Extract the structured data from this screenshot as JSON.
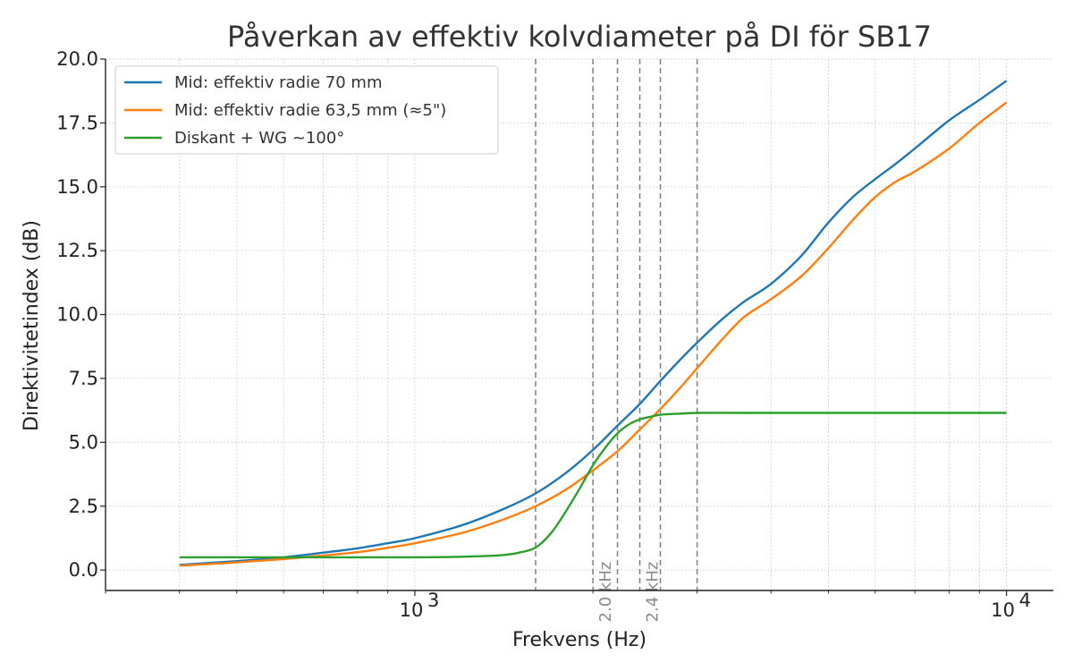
{
  "chart_data": {
    "type": "line",
    "title": "Påverkan av effektiv kolvdiameter på DI för SB17",
    "xlabel": "Frekvens (Hz)",
    "ylabel": "Direktivitetindex (dB)",
    "xscale": "log",
    "xlim": [
      300,
      12000
    ],
    "ylim": [
      -0.8,
      20.0
    ],
    "grid": true,
    "legend_position": "top-left",
    "x_ticks": [
      {
        "value": 1000,
        "label": "10",
        "exp": "3"
      },
      {
        "value": 10000,
        "label": "10",
        "exp": "4"
      }
    ],
    "y_ticks": [
      "0.0",
      "2.5",
      "5.0",
      "7.5",
      "10.0",
      "12.5",
      "15.0",
      "17.5",
      "20.0"
    ],
    "vertical_lines": [
      {
        "x": 1600
      },
      {
        "x": 2000,
        "label": "2.0 kHz"
      },
      {
        "x": 2200
      },
      {
        "x": 2400,
        "label": "2.4 kHz"
      },
      {
        "x": 2600
      },
      {
        "x": 3000
      }
    ],
    "series": [
      {
        "name": "Mid: effektiv radie 70 mm",
        "color": "#1f77b4",
        "x": [
          400,
          500,
          600,
          700,
          800,
          900,
          1000,
          1200,
          1400,
          1600,
          1800,
          2000,
          2200,
          2400,
          2600,
          2800,
          3000,
          3300,
          3600,
          4000,
          4500,
          5000,
          5500,
          6000,
          6500,
          7000,
          8000,
          9000,
          10000
        ],
        "y": [
          0.2,
          0.35,
          0.5,
          0.68,
          0.85,
          1.05,
          1.25,
          1.75,
          2.35,
          3.0,
          3.8,
          4.7,
          5.65,
          6.5,
          7.4,
          8.2,
          8.9,
          9.8,
          10.5,
          11.2,
          12.3,
          13.6,
          14.6,
          15.3,
          15.9,
          16.5,
          17.6,
          18.4,
          19.15
        ]
      },
      {
        "name": "Mid: effektiv radie 63,5 mm (≈5\")",
        "color": "#ff7f0e",
        "x": [
          400,
          500,
          600,
          700,
          800,
          900,
          1000,
          1200,
          1400,
          1600,
          1800,
          2000,
          2200,
          2400,
          2600,
          2800,
          3000,
          3300,
          3600,
          4000,
          4500,
          5000,
          5500,
          6000,
          6500,
          7000,
          8000,
          9000,
          10000
        ],
        "y": [
          0.17,
          0.3,
          0.43,
          0.57,
          0.7,
          0.87,
          1.05,
          1.45,
          1.95,
          2.5,
          3.15,
          3.9,
          4.65,
          5.5,
          6.3,
          7.1,
          7.9,
          9.0,
          9.9,
          10.6,
          11.5,
          12.6,
          13.7,
          14.6,
          15.2,
          15.6,
          16.5,
          17.5,
          18.3
        ]
      },
      {
        "name": "Diskant + WG ~100°",
        "color": "#2ca02c",
        "x": [
          400,
          600,
          800,
          1000,
          1200,
          1400,
          1500,
          1600,
          1700,
          1800,
          1900,
          2000,
          2100,
          2200,
          2300,
          2400,
          2500,
          2600,
          2800,
          3000,
          3500,
          4000,
          5000,
          6000,
          8000,
          10000
        ],
        "y": [
          0.5,
          0.5,
          0.5,
          0.5,
          0.52,
          0.58,
          0.68,
          0.88,
          1.45,
          2.3,
          3.2,
          4.1,
          4.8,
          5.35,
          5.7,
          5.9,
          6.0,
          6.08,
          6.12,
          6.15,
          6.15,
          6.15,
          6.15,
          6.15,
          6.15,
          6.15
        ]
      }
    ]
  }
}
